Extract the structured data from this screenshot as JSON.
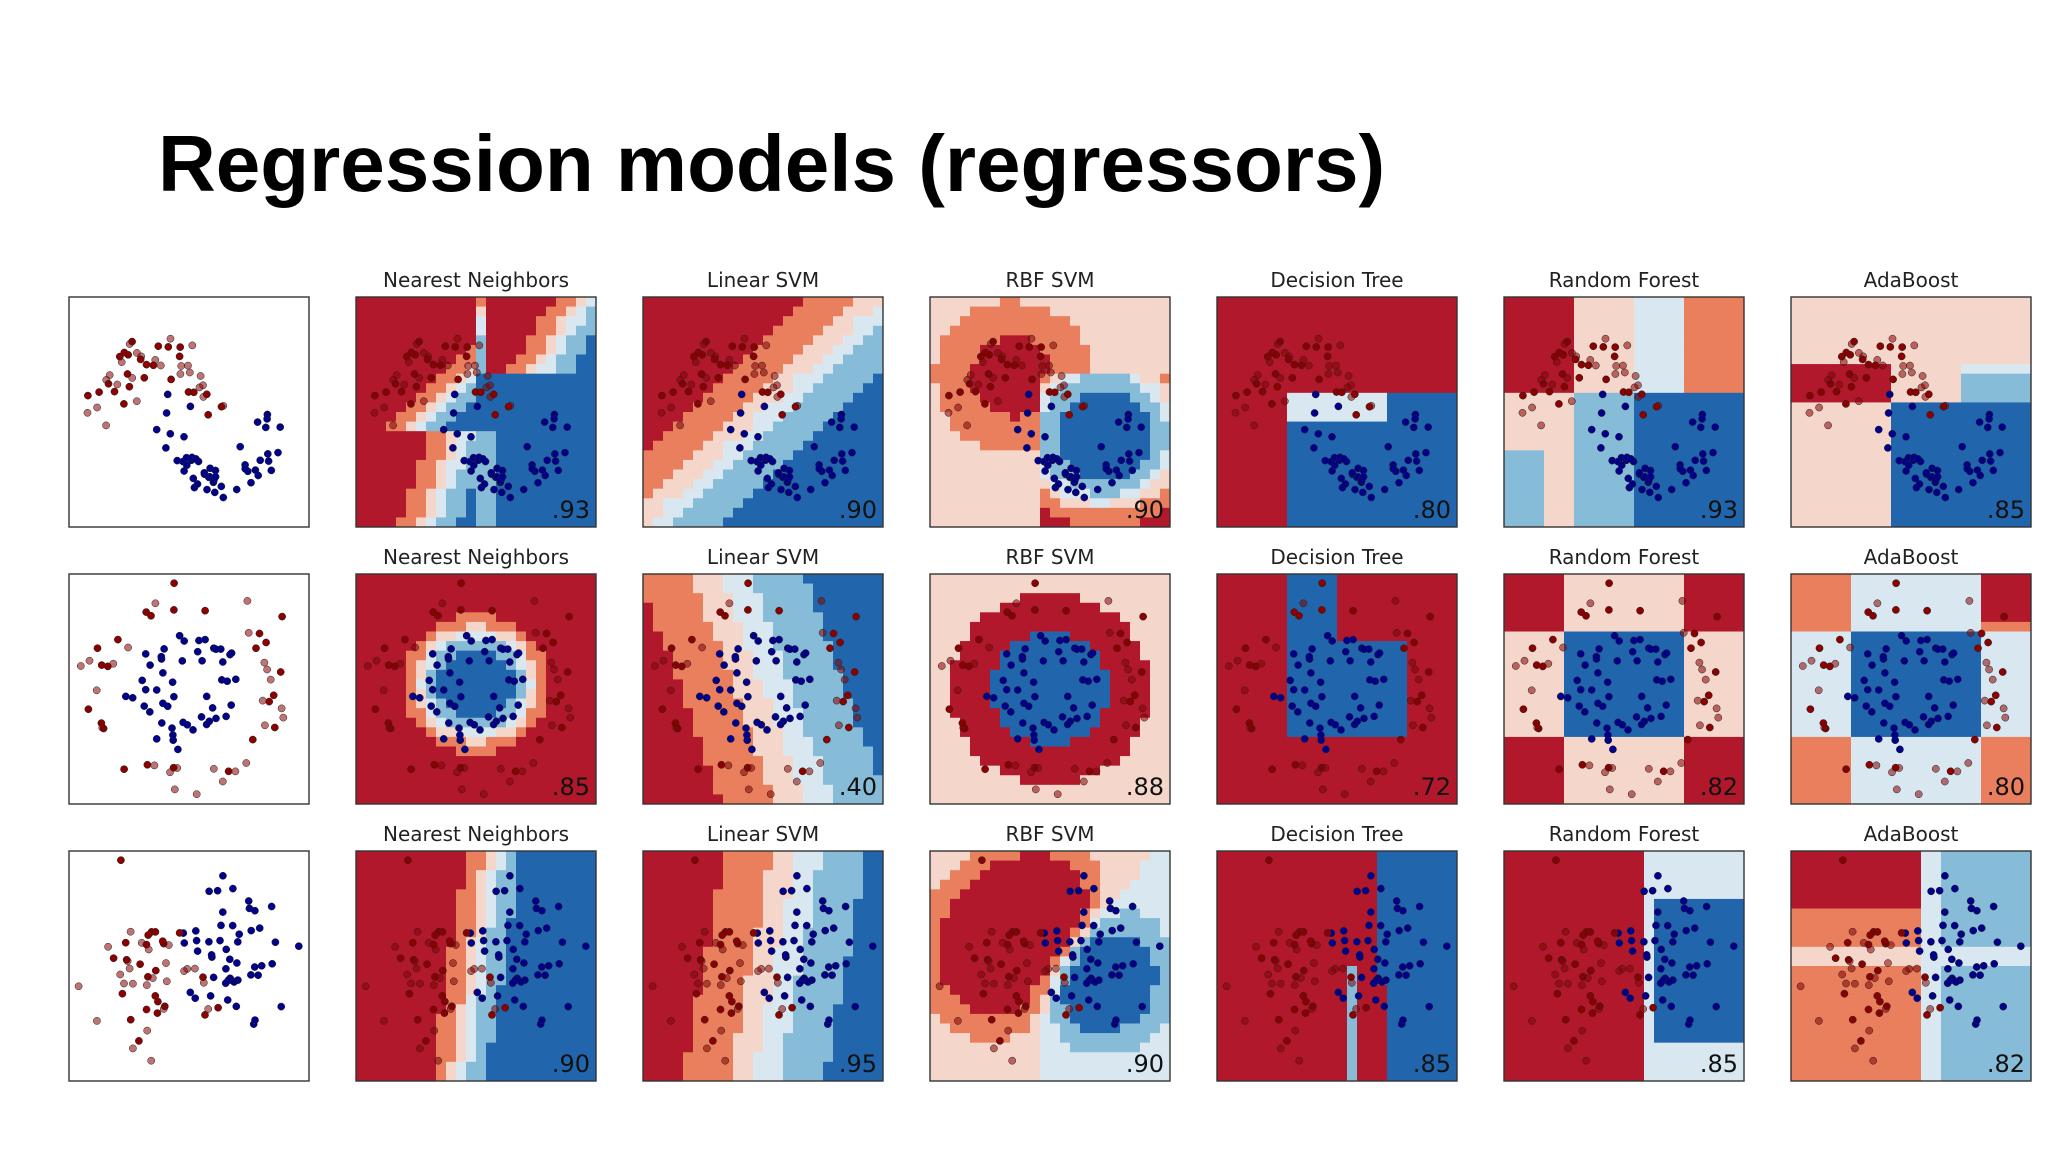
{
  "slide": {
    "title": "Regression models (regressors)"
  },
  "colors": {
    "class_red": "#8b0000",
    "class_blue": "#00008b",
    "strong_red": "#b2182b",
    "strong_blue": "#2166ac",
    "neutral": "#f7f7f7"
  },
  "chart_data": {
    "type": "scatter",
    "description_style": "classifier comparison grid",
    "row_datasets": [
      "moons",
      "circles",
      "linearly_separable"
    ],
    "columns": [
      {
        "title": "",
        "scores": [
          "",
          "",
          ""
        ]
      },
      {
        "title": "Nearest Neighbors",
        "scores": [
          ".93",
          ".85",
          ".90"
        ]
      },
      {
        "title": "Linear SVM",
        "scores": [
          ".90",
          ".40",
          ".95"
        ]
      },
      {
        "title": "RBF SVM",
        "scores": [
          ".90",
          ".88",
          ".90"
        ]
      },
      {
        "title": "Decision Tree",
        "scores": [
          ".80",
          ".72",
          ".85"
        ]
      },
      {
        "title": "Random Forest",
        "scores": [
          ".93",
          ".82",
          ".85"
        ]
      },
      {
        "title": "AdaBoost",
        "scores": [
          ".85",
          ".80",
          ".82"
        ]
      }
    ],
    "xlim": [
      0,
      1
    ],
    "ylim": [
      0,
      1
    ],
    "grid": false,
    "legend": "none"
  }
}
